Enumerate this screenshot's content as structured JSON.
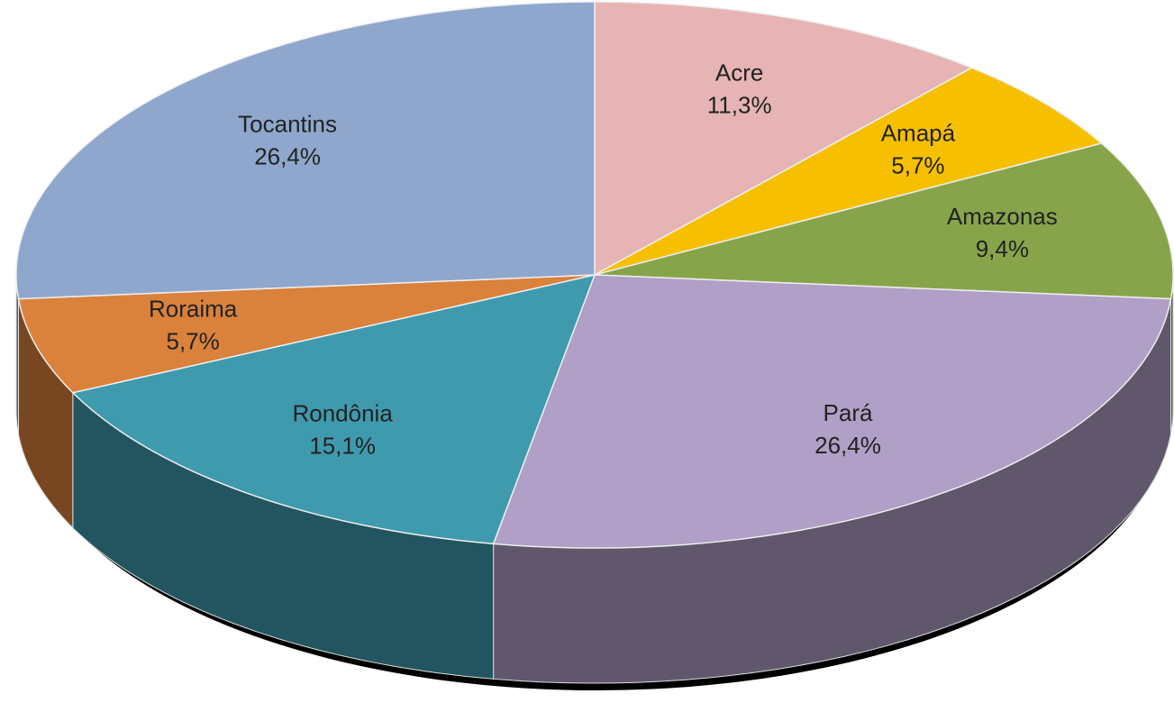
{
  "chart_data": {
    "type": "pie",
    "categories": [
      "Acre",
      "Amapá",
      "Amazonas",
      "Pará",
      "Rondônia",
      "Roraima",
      "Tocantins"
    ],
    "values": [
      11.3,
      5.7,
      9.4,
      26.4,
      15.1,
      5.7,
      26.4
    ],
    "value_labels": [
      "11,3%",
      "5,7%",
      "9,4%",
      "26,4%",
      "15,1%",
      "5,7%",
      "26,4%"
    ],
    "colors": [
      "#e6b4b4",
      "#f6c000",
      "#87a44b",
      "#b09fc6",
      "#3f9aae",
      "#da813c",
      "#8fa7cd"
    ]
  }
}
